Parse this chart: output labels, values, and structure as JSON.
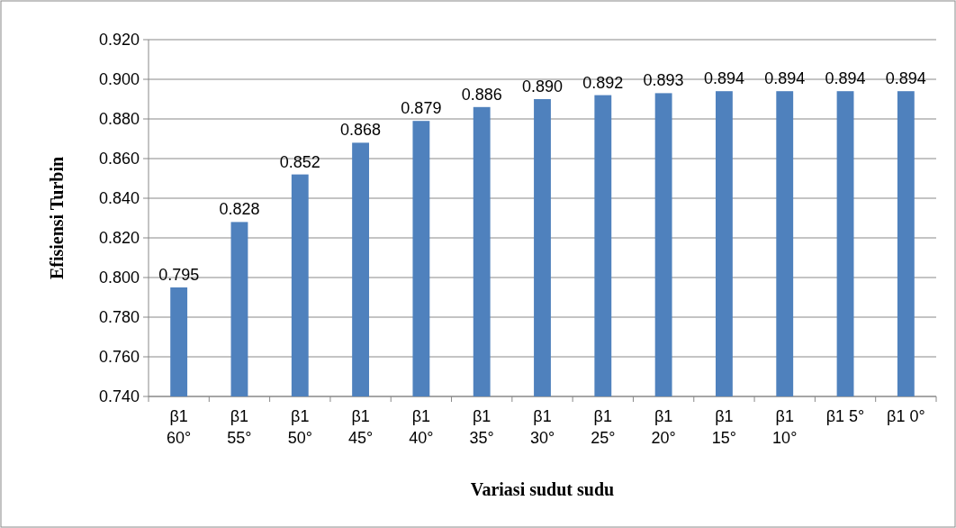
{
  "chart_data": {
    "type": "bar",
    "xlabel": "Variasi sudut sudu",
    "ylabel": "Efisiensi Turbin",
    "categories": [
      "β1 60°",
      "β1 55°",
      "β1 50°",
      "β1 45°",
      "β1 40°",
      "β1 35°",
      "β1 30°",
      "β1 25°",
      "β1 20°",
      "β1 15°",
      "β1 10°",
      "β1 5°",
      "β1 0°"
    ],
    "values": [
      0.795,
      0.828,
      0.852,
      0.868,
      0.879,
      0.886,
      0.89,
      0.892,
      0.893,
      0.894,
      0.894,
      0.894,
      0.894
    ],
    "value_labels": [
      "0.795",
      "0.828",
      "0.852",
      "0.868",
      "0.879",
      "0.886",
      "0.890",
      "0.892",
      "0.893",
      "0.894",
      "0.894",
      "0.894",
      "0.894"
    ],
    "color": "#4f81bd",
    "ylim": [
      0.74,
      0.92
    ],
    "yticks": [
      {
        "value": 0.74,
        "label": "0.740"
      },
      {
        "value": 0.76,
        "label": "0.760"
      },
      {
        "value": 0.78,
        "label": "0.780"
      },
      {
        "value": 0.8,
        "label": "0.800"
      },
      {
        "value": 0.82,
        "label": "0.820"
      },
      {
        "value": 0.84,
        "label": "0.840"
      },
      {
        "value": 0.86,
        "label": "0.860"
      },
      {
        "value": 0.88,
        "label": "0.880"
      },
      {
        "value": 0.9,
        "label": "0.900"
      },
      {
        "value": 0.92,
        "label": "0.920"
      }
    ],
    "grid": "y"
  }
}
